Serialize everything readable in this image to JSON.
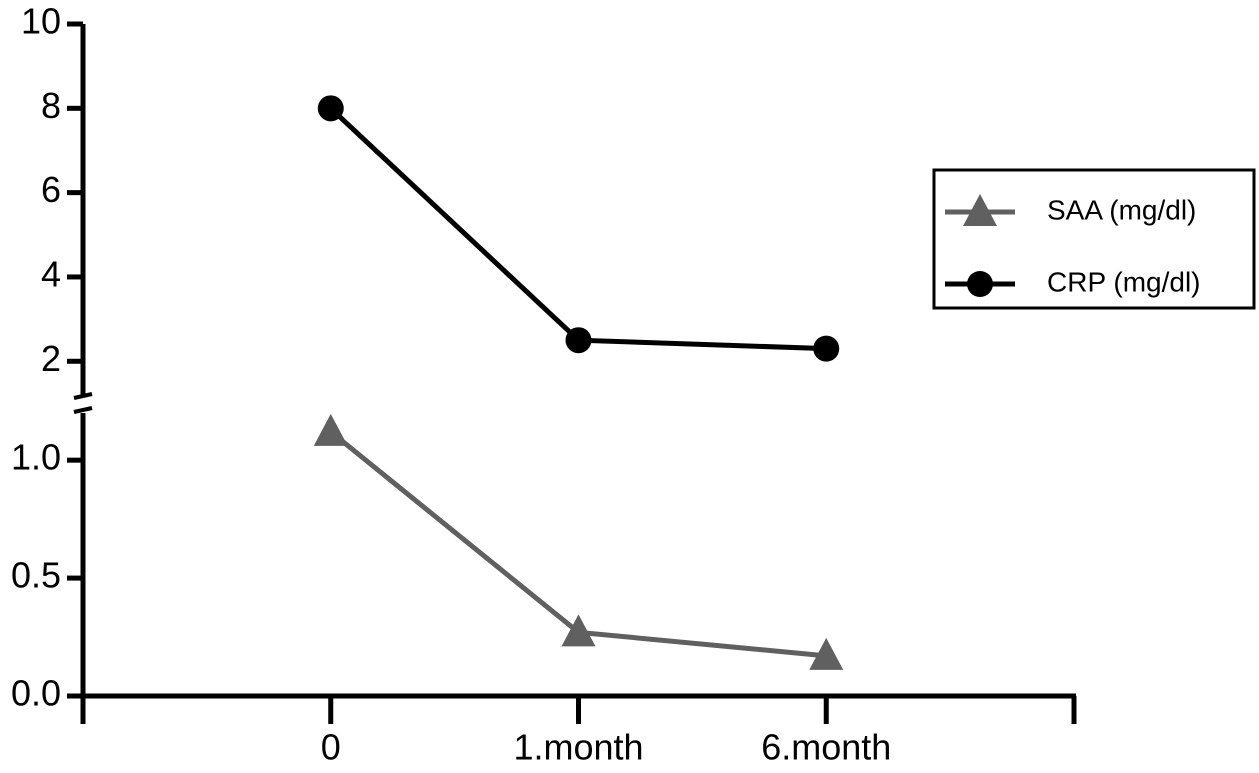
{
  "chart_data": {
    "type": "line",
    "categories": [
      "0",
      "1.month",
      "6.month"
    ],
    "y_segments": [
      {
        "ylim": [
          0,
          1.2
        ],
        "yticks": [
          {
            "value": 0,
            "label": "0.0"
          },
          {
            "value": 0.5,
            "label": "0.5"
          },
          {
            "value": 1,
            "label": "1.0"
          }
        ]
      },
      {
        "ylim": [
          1.2,
          10
        ],
        "yticks": [
          2,
          4,
          6,
          8,
          10
        ]
      }
    ],
    "series": [
      {
        "name": "SAA (mg/dl)",
        "color": "#606060",
        "marker": "triangle",
        "segment": 0,
        "values": [
          1.12,
          0.27,
          0.17
        ]
      },
      {
        "name": "CRP (mg/dl)",
        "color": "#000000",
        "marker": "circle",
        "segment": 1,
        "values": [
          8,
          2.5,
          2.3
        ]
      }
    ]
  }
}
